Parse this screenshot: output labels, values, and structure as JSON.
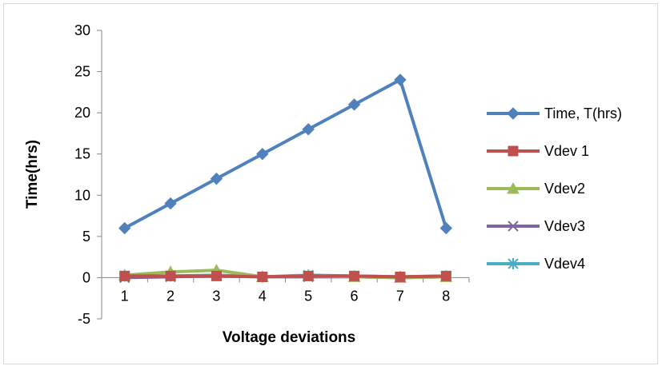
{
  "chart_data": {
    "type": "line",
    "title": "",
    "xlabel": "Voltage deviations",
    "ylabel": "Time(hrs)",
    "categories": [
      "1",
      "2",
      "3",
      "4",
      "5",
      "6",
      "7",
      "8"
    ],
    "ylim": [
      -5,
      30
    ],
    "yticks": [
      -5,
      0,
      5,
      10,
      15,
      20,
      25,
      30
    ],
    "grid": false,
    "legend_position": "right",
    "series": [
      {
        "name": "Time, T(hrs)",
        "color": "#4f81bd",
        "marker": "diamond",
        "values": [
          6,
          9,
          12,
          15,
          18,
          21,
          24,
          6
        ]
      },
      {
        "name": "Vdev 1",
        "color": "#c0504d",
        "marker": "square",
        "values": [
          0.2,
          0.2,
          0.2,
          0.1,
          0.2,
          0.2,
          0.1,
          0.2
        ]
      },
      {
        "name": "Vdev2",
        "color": "#9bbb59",
        "marker": "triangle",
        "values": [
          0.3,
          0.7,
          0.9,
          0.1,
          0.2,
          0.1,
          0.0,
          0.1
        ]
      },
      {
        "name": "Vdev3",
        "color": "#8064a2",
        "marker": "x",
        "values": [
          0.0,
          0.1,
          0.2,
          0.1,
          0.1,
          0.1,
          0.0,
          0.1
        ]
      },
      {
        "name": "Vdev4",
        "color": "#4bacc6",
        "marker": "star",
        "values": [
          0.2,
          0.2,
          0.3,
          0.1,
          0.3,
          0.2,
          0.1,
          0.2
        ]
      }
    ]
  }
}
